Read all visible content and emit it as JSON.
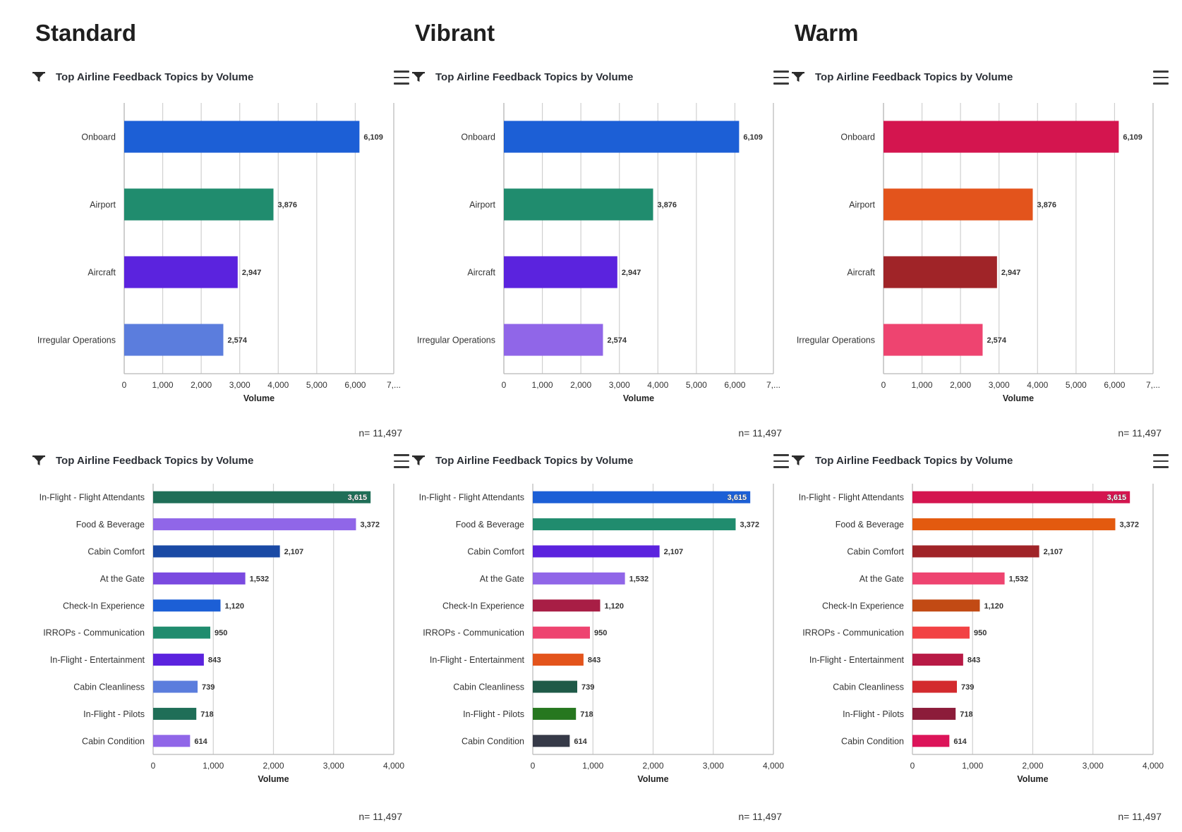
{
  "columns": [
    {
      "title": "Standard"
    },
    {
      "title": "Vibrant"
    },
    {
      "title": "Warm"
    }
  ],
  "panel_title": "Top Airline Feedback Topics by Volume",
  "n_label": "n= 11,497",
  "icons": {
    "filter": "filter-funnel-icon",
    "menu": "hamburger-menu-icon"
  },
  "chart_data": [
    {
      "type": "bar",
      "orientation": "horizontal",
      "palette": "Standard",
      "title": "Top Airline Feedback Topics by Volume",
      "xlabel": "Volume",
      "xlim": [
        0,
        7000
      ],
      "xticks": [
        "0",
        "1,000",
        "2,000",
        "3,000",
        "4,000",
        "5,000",
        "6,000",
        "7,..."
      ],
      "categories": [
        "Onboard",
        "Airport",
        "Aircraft",
        "Irregular Operations"
      ],
      "values": [
        6109,
        3876,
        2947,
        2574
      ],
      "value_labels": [
        "6,109",
        "3,876",
        "2,947",
        "2,574"
      ],
      "colors": [
        "#1c5fd6",
        "#208c6e",
        "#5b23de",
        "#5b7ddd"
      ],
      "grid": true
    },
    {
      "type": "bar",
      "orientation": "horizontal",
      "palette": "Vibrant",
      "title": "Top Airline Feedback Topics by Volume",
      "xlabel": "Volume",
      "xlim": [
        0,
        7000
      ],
      "xticks": [
        "0",
        "1,000",
        "2,000",
        "3,000",
        "4,000",
        "5,000",
        "6,000",
        "7,..."
      ],
      "categories": [
        "Onboard",
        "Airport",
        "Aircraft",
        "Irregular Operations"
      ],
      "values": [
        6109,
        3876,
        2947,
        2574
      ],
      "value_labels": [
        "6,109",
        "3,876",
        "2,947",
        "2,574"
      ],
      "colors": [
        "#1c5fd6",
        "#208c6e",
        "#5b23de",
        "#9066e8"
      ],
      "grid": true
    },
    {
      "type": "bar",
      "orientation": "horizontal",
      "palette": "Warm",
      "title": "Top Airline Feedback Topics by Volume",
      "xlabel": "Volume",
      "xlim": [
        0,
        7000
      ],
      "xticks": [
        "0",
        "1,000",
        "2,000",
        "3,000",
        "4,000",
        "5,000",
        "6,000",
        "7,..."
      ],
      "categories": [
        "Onboard",
        "Airport",
        "Aircraft",
        "Irregular Operations"
      ],
      "values": [
        6109,
        3876,
        2947,
        2574
      ],
      "value_labels": [
        "6,109",
        "3,876",
        "2,947",
        "2,574"
      ],
      "colors": [
        "#d4154f",
        "#e3541c",
        "#a02428",
        "#ee4470"
      ],
      "grid": true
    },
    {
      "type": "bar",
      "orientation": "horizontal",
      "palette": "Standard",
      "title": "Top Airline Feedback Topics by Volume",
      "xlabel": "Volume",
      "xlim": [
        0,
        4000
      ],
      "xticks": [
        "0",
        "1,000",
        "2,000",
        "3,000",
        "4,000"
      ],
      "categories": [
        "In-Flight - Flight Attendants",
        "Food & Beverage",
        "Cabin Comfort",
        "At the Gate",
        "Check-In Experience",
        "IRROPs - Communication",
        "In-Flight - Entertainment",
        "Cabin Cleanliness",
        "In-Flight - Pilots",
        "Cabin Condition"
      ],
      "values": [
        3615,
        3372,
        2107,
        1532,
        1120,
        950,
        843,
        739,
        718,
        614
      ],
      "value_labels": [
        "3,615",
        "3,372",
        "2,107",
        "1,532",
        "1,120",
        "950",
        "843",
        "739",
        "718",
        "614"
      ],
      "colors": [
        "#1f6e57",
        "#9066e8",
        "#1a4aa5",
        "#7a4ae0",
        "#1c5fd6",
        "#208c6e",
        "#5b23de",
        "#5b7ddd",
        "#1f6e57",
        "#9066e8"
      ],
      "grid": true
    },
    {
      "type": "bar",
      "orientation": "horizontal",
      "palette": "Vibrant",
      "title": "Top Airline Feedback Topics by Volume",
      "xlabel": "Volume",
      "xlim": [
        0,
        4000
      ],
      "xticks": [
        "0",
        "1,000",
        "2,000",
        "3,000",
        "4,000"
      ],
      "categories": [
        "In-Flight - Flight Attendants",
        "Food & Beverage",
        "Cabin Comfort",
        "At the Gate",
        "Check-In Experience",
        "IRROPs - Communication",
        "In-Flight - Entertainment",
        "Cabin Cleanliness",
        "In-Flight - Pilots",
        "Cabin Condition"
      ],
      "values": [
        3615,
        3372,
        2107,
        1532,
        1120,
        950,
        843,
        739,
        718,
        614
      ],
      "value_labels": [
        "3,615",
        "3,372",
        "2,107",
        "1,532",
        "1,120",
        "950",
        "843",
        "739",
        "718",
        "614"
      ],
      "colors": [
        "#1c5fd6",
        "#208c6e",
        "#5b23de",
        "#9066e8",
        "#a81e45",
        "#ee4470",
        "#e3541c",
        "#1f5a48",
        "#26771f",
        "#363a48"
      ],
      "grid": true
    },
    {
      "type": "bar",
      "orientation": "horizontal",
      "palette": "Warm",
      "title": "Top Airline Feedback Topics by Volume",
      "xlabel": "Volume",
      "xlim": [
        0,
        4000
      ],
      "xticks": [
        "0",
        "1,000",
        "2,000",
        "3,000",
        "4,000"
      ],
      "categories": [
        "In-Flight - Flight Attendants",
        "Food & Beverage",
        "Cabin Comfort",
        "At the Gate",
        "Check-In Experience",
        "IRROPs - Communication",
        "In-Flight - Entertainment",
        "Cabin Cleanliness",
        "In-Flight - Pilots",
        "Cabin Condition"
      ],
      "values": [
        3615,
        3372,
        2107,
        1532,
        1120,
        950,
        843,
        739,
        718,
        614
      ],
      "value_labels": [
        "3,615",
        "3,372",
        "2,107",
        "1,532",
        "1,120",
        "950",
        "843",
        "739",
        "718",
        "614"
      ],
      "colors": [
        "#d4154f",
        "#e35a0f",
        "#a02428",
        "#ee4470",
        "#c24a14",
        "#f24244",
        "#b81a45",
        "#d32a2e",
        "#8c1c3a",
        "#dc1459"
      ],
      "grid": true
    }
  ]
}
